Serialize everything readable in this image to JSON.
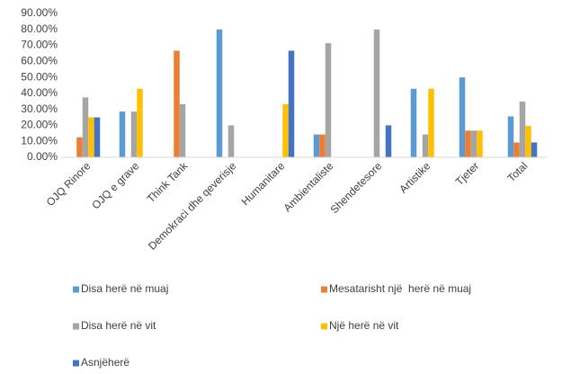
{
  "chart_data": {
    "type": "bar",
    "categories": [
      "OJQ Rinore",
      "OJQ e grave",
      "Think Tank",
      "Demokraci dhe qeverisje",
      "Humanitare",
      "Ambientaliste",
      "Shendetesore",
      "Artistike",
      "Tjeter",
      "Total"
    ],
    "series": [
      {
        "name": "Disa herë në muaj",
        "color": "#5b9bd5",
        "values": [
          0,
          28.6,
          0,
          80,
          0,
          14.3,
          0,
          42.9,
          50,
          25.6
        ]
      },
      {
        "name": "Mesatarisht një  herë në muaj",
        "color": "#ed7d31",
        "values": [
          12.5,
          0,
          66.7,
          0,
          0,
          14.3,
          0,
          0,
          16.7,
          9.3
        ]
      },
      {
        "name": "Disa herë në vit",
        "color": "#a5a5a5",
        "values": [
          37.5,
          28.6,
          33.3,
          20,
          0,
          71.4,
          80,
          14.3,
          16.7,
          34.9
        ]
      },
      {
        "name": "Një herë në vit",
        "color": "#ffc000",
        "values": [
          25,
          42.9,
          0,
          0,
          33.3,
          0,
          0,
          42.9,
          16.7,
          19.6
        ]
      },
      {
        "name": "Asnjëherë",
        "color": "#4472c4",
        "values": [
          25,
          0,
          0,
          0,
          66.7,
          0,
          20,
          0,
          0,
          9.3
        ]
      }
    ],
    "ylim": [
      0,
      90
    ],
    "yticks": [
      {
        "value": 0,
        "label": "0.00%"
      },
      {
        "value": 10,
        "label": "10.00%"
      },
      {
        "value": 20,
        "label": "20.00%"
      },
      {
        "value": 30,
        "label": "30.00%"
      },
      {
        "value": 40,
        "label": "40.00%"
      },
      {
        "value": 50,
        "label": "50.00%"
      },
      {
        "value": 60,
        "label": "60.00%"
      },
      {
        "value": 70,
        "label": "70.00%"
      },
      {
        "value": 80,
        "label": "80.00%"
      },
      {
        "value": 90,
        "label": "90.00%"
      }
    ],
    "grid": false,
    "legend": "bottom"
  }
}
